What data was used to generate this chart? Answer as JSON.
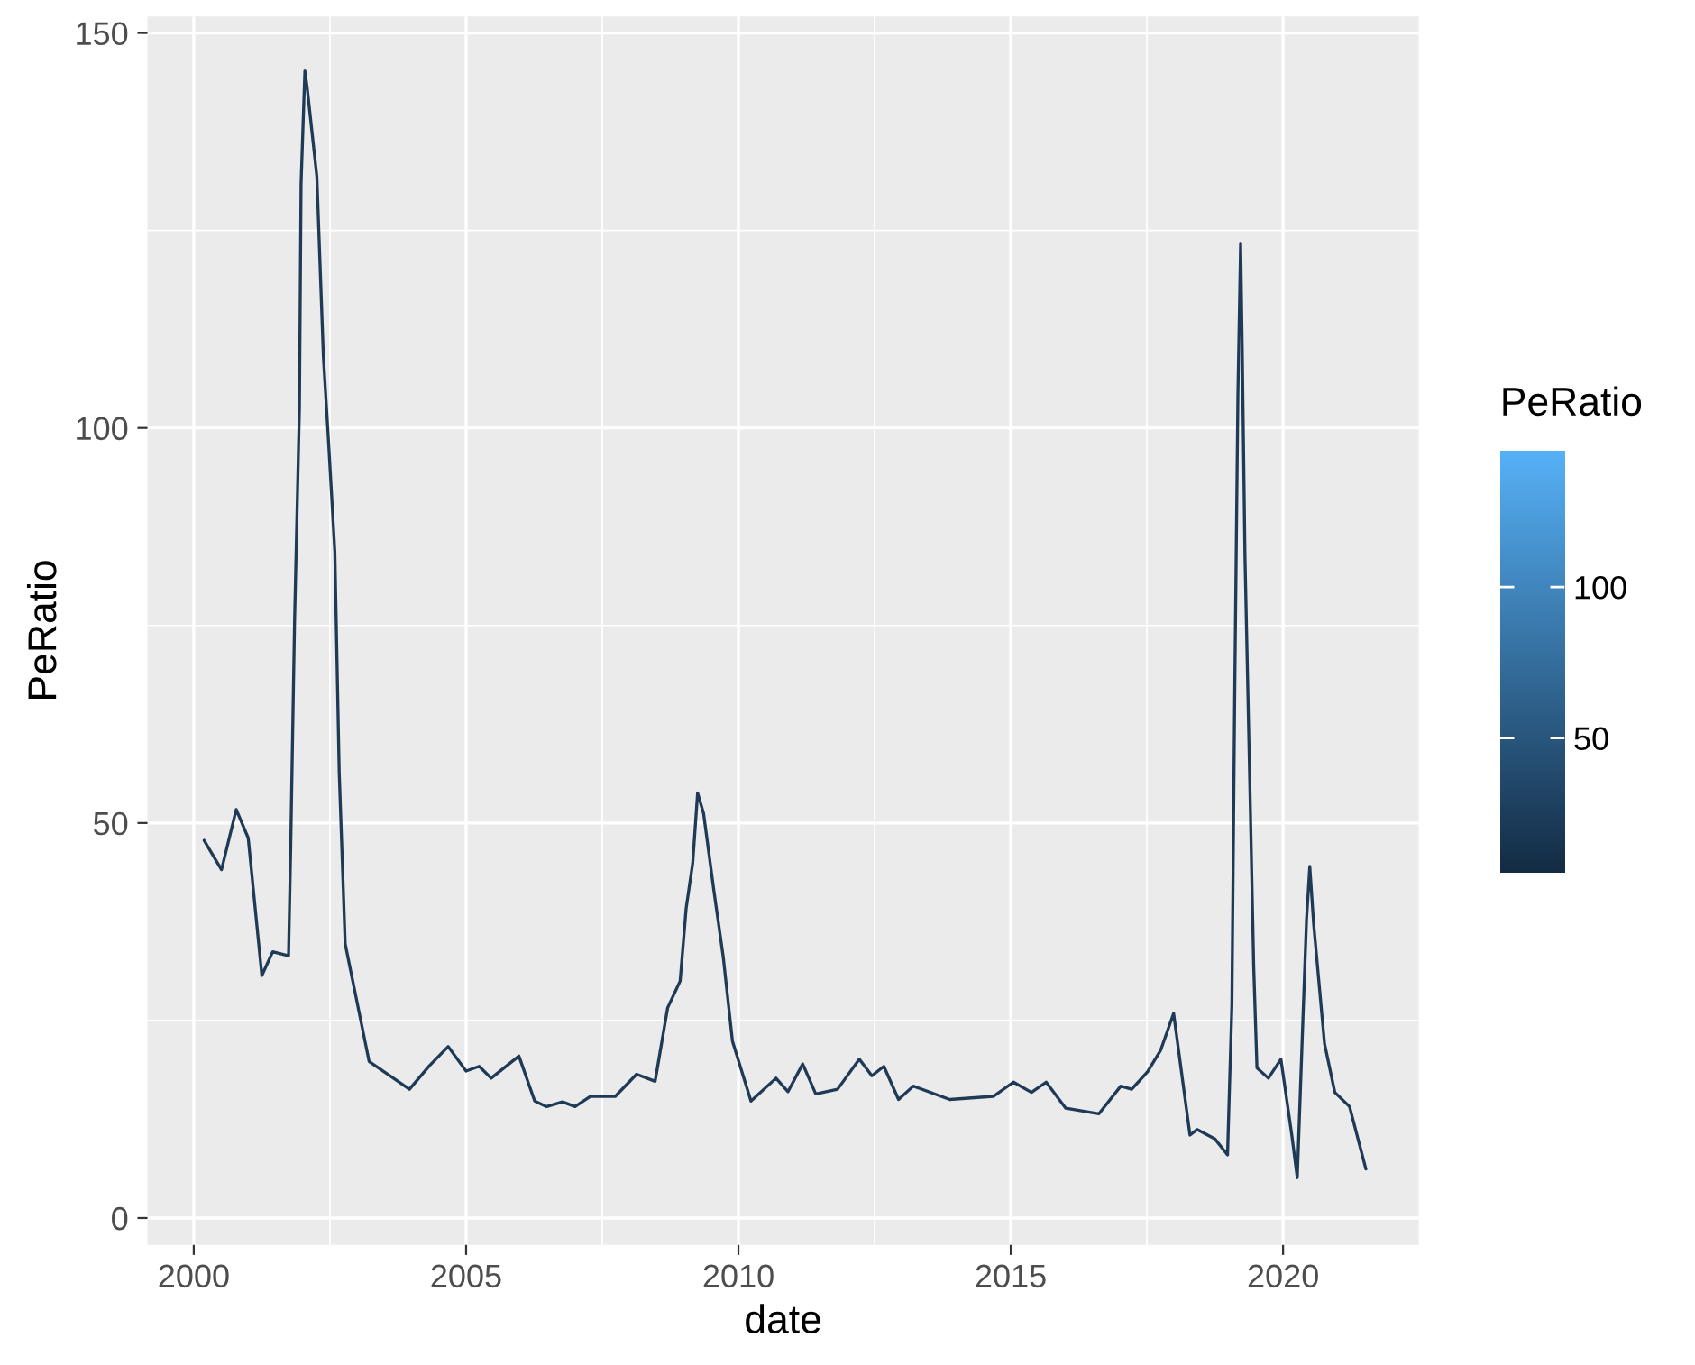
{
  "chart_data": {
    "type": "line",
    "xlabel": "date",
    "ylabel": "PeRatio",
    "clabel": "PeRatio",
    "xlim": [
      1999.15,
      2022.49
    ],
    "ylim": [
      -3.4,
      152.1
    ],
    "xticks": [
      2000,
      2005,
      2010,
      2015,
      2020
    ],
    "yticks": [
      0,
      50,
      100,
      150
    ],
    "clim": [
      5.1,
      145.2
    ],
    "cticks": [
      50,
      100
    ],
    "grid": true,
    "series": [
      {
        "color": "#1e3a56",
        "x": [
          2000.19,
          2000.51,
          2000.78,
          2001.0,
          2001.25,
          2001.45,
          2001.74,
          2001.78,
          2001.85,
          2001.94,
          2001.97,
          2002.04,
          2002.08,
          2002.26,
          2002.38,
          2002.48,
          2002.59,
          2002.63,
          2002.67,
          2002.78,
          2003.22,
          2003.96,
          2004.33,
          2004.67,
          2005.0,
          2005.24,
          2005.46,
          2005.97,
          2006.26,
          2006.48,
          2006.77,
          2007.0,
          2007.28,
          2007.74,
          2008.13,
          2008.47,
          2008.7,
          2008.93,
          2009.04,
          2009.16,
          2009.25,
          2009.36,
          2009.55,
          2009.72,
          2009.89,
          2010.23,
          2010.69,
          2010.91,
          2011.18,
          2011.42,
          2011.82,
          2012.22,
          2012.45,
          2012.67,
          2012.94,
          2013.21,
          2013.88,
          2014.68,
          2015.05,
          2015.38,
          2015.65,
          2016.01,
          2016.62,
          2017.02,
          2017.22,
          2017.51,
          2017.75,
          2017.99,
          2018.29,
          2018.42,
          2018.75,
          2018.98,
          2019.06,
          2019.11,
          2019.17,
          2019.22,
          2019.25,
          2019.3,
          2019.38,
          2019.46,
          2019.52,
          2019.73,
          2019.96,
          2020.16,
          2020.26,
          2020.36,
          2020.43,
          2020.49,
          2020.56,
          2020.76,
          2020.95,
          2021.22,
          2021.52
        ],
        "values": [
          47.8,
          44.1,
          51.7,
          48.1,
          30.7,
          33.7,
          33.2,
          47,
          75.3,
          102.6,
          130.9,
          145.2,
          143.2,
          131.8,
          109,
          97.6,
          84.3,
          70.4,
          56.5,
          34.7,
          19.8,
          16.3,
          19.3,
          21.7,
          18.6,
          19.2,
          17.7,
          20.5,
          14.8,
          14.1,
          14.7,
          14.1,
          15.4,
          15.4,
          18.2,
          17.3,
          26.6,
          30,
          39.2,
          44.9,
          53.8,
          51.2,
          41.4,
          33.1,
          22.4,
          14.8,
          17.7,
          16,
          19.5,
          15.7,
          16.3,
          20.1,
          18,
          19.2,
          15.0,
          16.7,
          15.0,
          15.4,
          17.2,
          15.9,
          17.2,
          13.9,
          13.2,
          16.7,
          16.3,
          18.5,
          21.2,
          25.9,
          10.5,
          11.2,
          10.0,
          8.0,
          27,
          65.1,
          104,
          123.4,
          109.8,
          83.8,
          57.9,
          31.9,
          19.0,
          17.7,
          20.1,
          10.5,
          5.1,
          24.4,
          37.8,
          44.5,
          37.3,
          22.1,
          15.9,
          14.1,
          6.2
        ]
      }
    ]
  }
}
